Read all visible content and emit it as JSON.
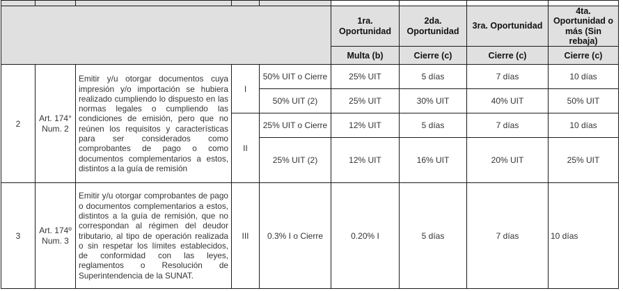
{
  "header": {
    "opportunities": [
      "1ra. Oportunidad",
      "2da. Oportunidad",
      "3ra. Oportunidad",
      "4ta. Oportunidad o más (Sin rebaja)"
    ],
    "sanction_types": [
      "Multa (b)",
      "Cierre (c)",
      "Cierre (c)",
      "Cierre (c)"
    ]
  },
  "rows": [
    {
      "number": "2",
      "article": "Art. 174° Num. 2",
      "description": "Emitir y/u otorgar documentos cuya impresión y/o importación se hubiera realizado cumpliendo lo dispuesto en las normas legales o cumpliendo las condiciones de emisión, pero que no reúnen los requisitos y características para ser considerados como comprobantes de pago o como documentos complementarios a estos, distintos a la guía de remisión",
      "groups": [
        {
          "table": "I",
          "lines": [
            [
              "50% UIT o Cierre",
              "25% UIT",
              "5 días",
              "7 días",
              "10 días"
            ],
            [
              "50%  UIT (2)",
              "25% UIT",
              "30% UIT",
              "40% UIT",
              "50% UIT"
            ]
          ]
        },
        {
          "table": "II",
          "lines": [
            [
              "25% UIT o Cierre",
              "12% UIT",
              "5 días",
              "7 días",
              "10 días"
            ],
            [
              "25% UIT (2)",
              "12% UIT",
              "16% UIT",
              "20% UIT",
              "25% UIT"
            ]
          ]
        }
      ]
    },
    {
      "number": "3",
      "article": "Art. 174º Num. 3",
      "description": "Emitir y/u otorgar comprobantes de pago o documentos complementarios a estos, distintos a la guía de remisión, que no correspondan al régimen del deudor tributario, al tipo de operación realizada o sin respetar los límites establecidos, de conformidad con las leyes, reglamentos o Resolución de Superintendencia de la SUNAT.",
      "table": "III",
      "values": [
        "0.3% I o Cierre",
        "0.20% I",
        "5 días",
        "7 días",
        "10 días"
      ]
    }
  ]
}
